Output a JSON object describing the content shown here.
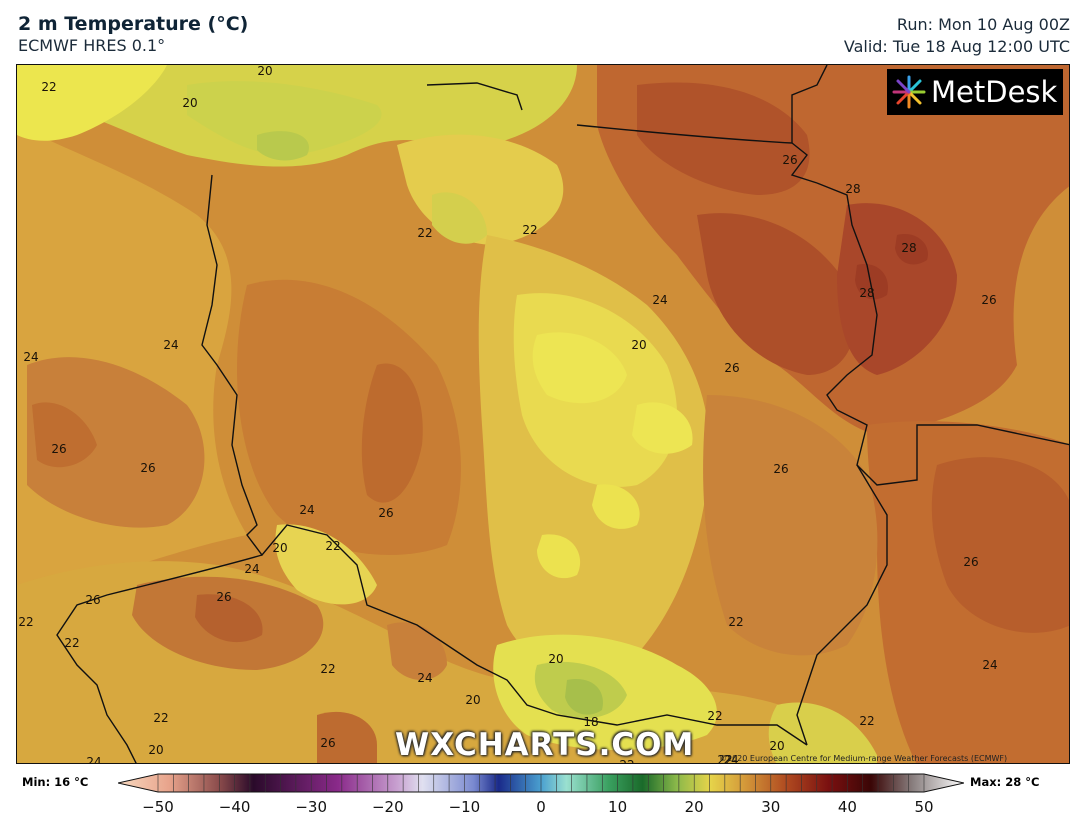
{
  "header": {
    "title": "2 m Temperature (°C)",
    "model": "ECMWF HRES 0.1°",
    "run": "Run: Mon 10 Aug 00Z",
    "valid": "Valid: Tue 18 Aug 12:00 UTC"
  },
  "logo": {
    "text": "MetDesk"
  },
  "watermark": "WXCHARTS.COM",
  "copyright": "©2020 European Centre for Medium-range Weather Forecasts (ECMWF)",
  "legend": {
    "min_label": "Min: 16 °C",
    "max_label": "Max: 28 °C",
    "ticks": [
      "−50",
      "−40",
      "−30",
      "−20",
      "−10",
      "0",
      "10",
      "20",
      "30",
      "40",
      "50"
    ],
    "range": [
      -50,
      50
    ]
  },
  "contour_labels": [
    {
      "text": "22"
    },
    {
      "text": "20"
    },
    {
      "text": "20"
    },
    {
      "text": "22"
    },
    {
      "text": "22"
    },
    {
      "text": "24"
    },
    {
      "text": "24"
    },
    {
      "text": "26"
    },
    {
      "text": "26"
    },
    {
      "text": "24"
    },
    {
      "text": "26"
    },
    {
      "text": "20"
    },
    {
      "text": "22"
    },
    {
      "text": "24"
    },
    {
      "text": "26"
    },
    {
      "text": "22"
    },
    {
      "text": "22"
    },
    {
      "text": "22"
    },
    {
      "text": "22"
    },
    {
      "text": "24"
    },
    {
      "text": "22"
    },
    {
      "text": "20"
    },
    {
      "text": "26"
    },
    {
      "text": "24"
    },
    {
      "text": "20"
    },
    {
      "text": "20"
    },
    {
      "text": "18"
    },
    {
      "text": "24"
    },
    {
      "text": "20"
    },
    {
      "text": "26"
    },
    {
      "text": "26"
    },
    {
      "text": "26"
    },
    {
      "text": "28"
    },
    {
      "text": "28"
    },
    {
      "text": "28"
    },
    {
      "text": "26"
    },
    {
      "text": "26"
    },
    {
      "text": "22"
    },
    {
      "text": "22"
    },
    {
      "text": "24"
    },
    {
      "text": "22"
    },
    {
      "text": "26"
    },
    {
      "text": "20"
    },
    {
      "text": "24"
    },
    {
      "text": "22"
    }
  ],
  "colors": {
    "t18": "#a9c24a",
    "t20": "#d6d24a",
    "t21": "#ece64e",
    "t22": "#e6c64a",
    "t23": "#dcb043",
    "t24": "#d39a3a",
    "t25": "#cd8a36",
    "t26": "#c26e2e",
    "t27": "#b85a28",
    "t28": "#ab4822",
    "border": "#111111"
  }
}
